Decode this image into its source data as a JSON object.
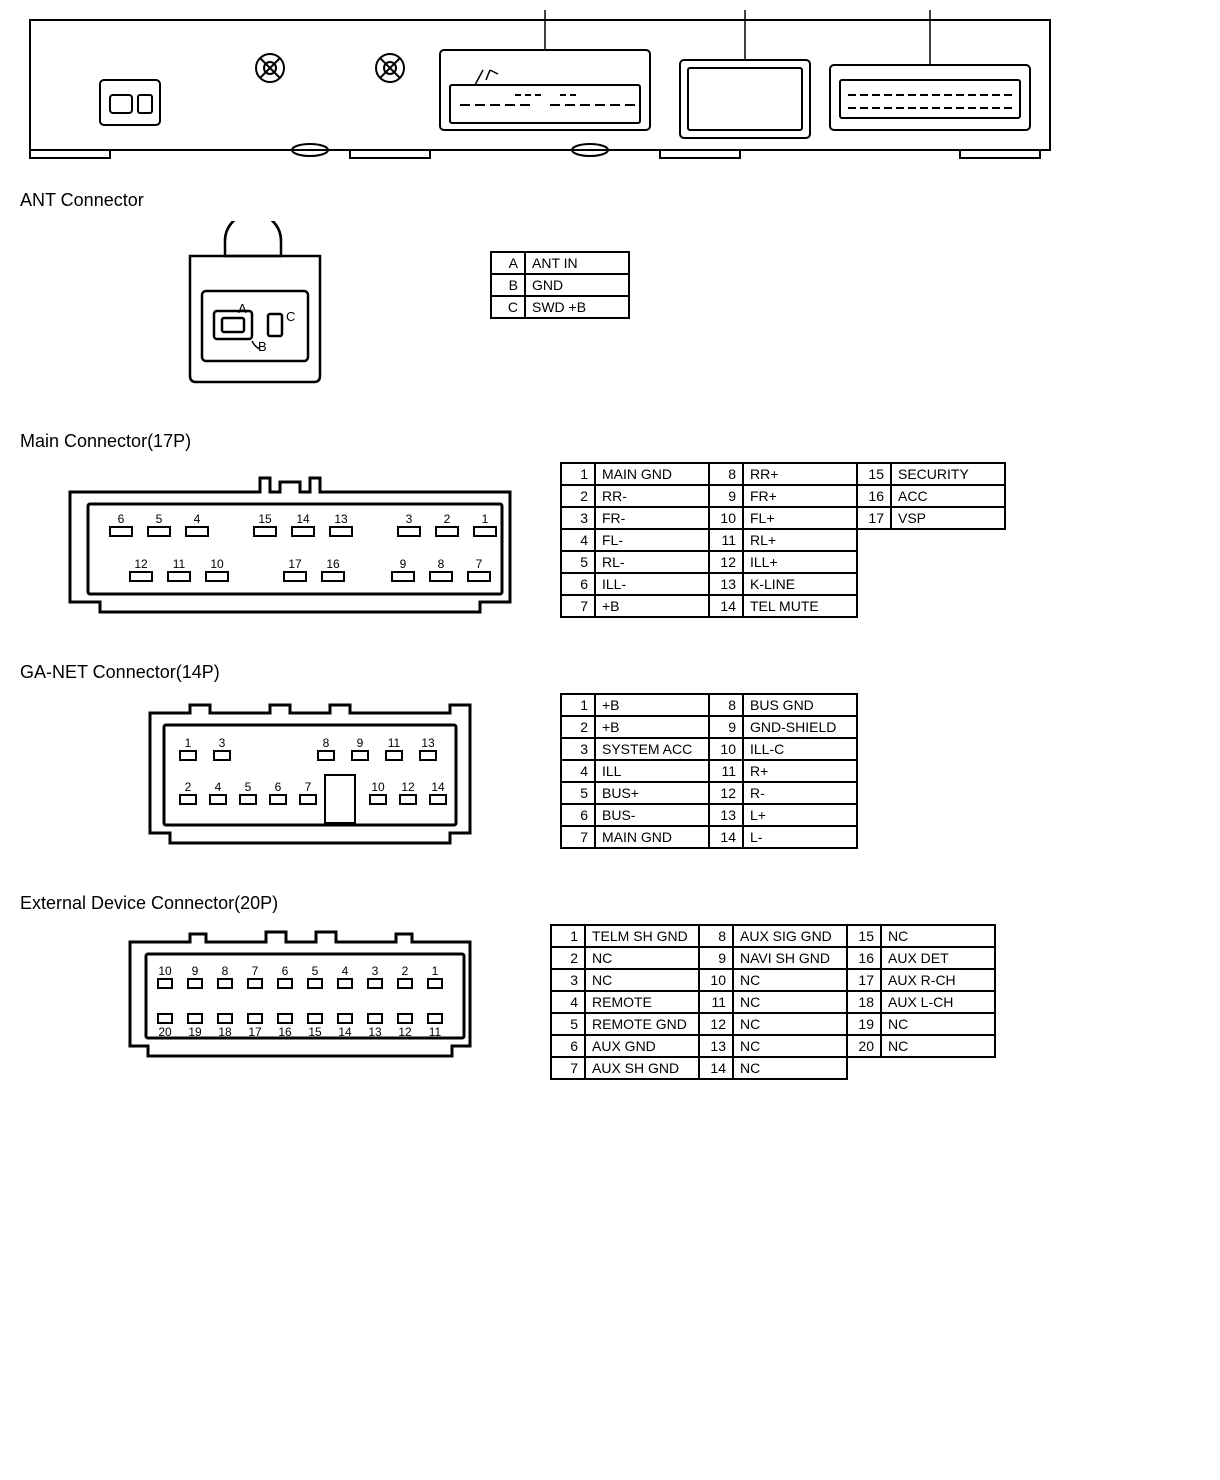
{
  "colors": {
    "stroke": "#000000",
    "background": "#ffffff",
    "font_family": "Arial, Helvetica, sans-serif"
  },
  "sections": {
    "ant": {
      "title": "ANT Connector",
      "pins": [
        {
          "n": "A",
          "name": "ANT IN"
        },
        {
          "n": "B",
          "name": "GND"
        },
        {
          "n": "C",
          "name": "SWD +B"
        }
      ]
    },
    "main": {
      "title": "Main Connector(17P)",
      "cols": 3,
      "pins": [
        {
          "n": "1",
          "name": "MAIN GND"
        },
        {
          "n": "2",
          "name": "RR-"
        },
        {
          "n": "3",
          "name": "FR-"
        },
        {
          "n": "4",
          "name": "FL-"
        },
        {
          "n": "5",
          "name": "RL-"
        },
        {
          "n": "6",
          "name": "ILL-"
        },
        {
          "n": "7",
          "name": "+B"
        },
        {
          "n": "8",
          "name": "RR+"
        },
        {
          "n": "9",
          "name": "FR+"
        },
        {
          "n": "10",
          "name": "FL+"
        },
        {
          "n": "11",
          "name": "RL+"
        },
        {
          "n": "12",
          "name": "ILL+"
        },
        {
          "n": "13",
          "name": "K-LINE"
        },
        {
          "n": "14",
          "name": "TEL MUTE"
        },
        {
          "n": "15",
          "name": "SECURITY"
        },
        {
          "n": "16",
          "name": "ACC"
        },
        {
          "n": "17",
          "name": "VSP"
        }
      ]
    },
    "ganet": {
      "title": "GA-NET Connector(14P)",
      "cols": 2,
      "pins": [
        {
          "n": "1",
          "name": "+B"
        },
        {
          "n": "2",
          "name": "+B"
        },
        {
          "n": "3",
          "name": "SYSTEM ACC"
        },
        {
          "n": "4",
          "name": "ILL"
        },
        {
          "n": "5",
          "name": "BUS+"
        },
        {
          "n": "6",
          "name": "BUS-"
        },
        {
          "n": "7",
          "name": "MAIN GND"
        },
        {
          "n": "8",
          "name": "BUS GND"
        },
        {
          "n": "9",
          "name": "GND-SHIELD"
        },
        {
          "n": "10",
          "name": "ILL-C"
        },
        {
          "n": "11",
          "name": "R+"
        },
        {
          "n": "12",
          "name": "R-"
        },
        {
          "n": "13",
          "name": "L+"
        },
        {
          "n": "14",
          "name": "L-"
        }
      ]
    },
    "ext": {
      "title": "External Device Connector(20P)",
      "cols": 3,
      "pins": [
        {
          "n": "1",
          "name": "TELM SH GND"
        },
        {
          "n": "2",
          "name": "NC"
        },
        {
          "n": "3",
          "name": "NC"
        },
        {
          "n": "4",
          "name": "REMOTE"
        },
        {
          "n": "5",
          "name": "REMOTE GND"
        },
        {
          "n": "6",
          "name": "AUX GND"
        },
        {
          "n": "7",
          "name": "AUX SH GND"
        },
        {
          "n": "8",
          "name": "AUX SIG GND"
        },
        {
          "n": "9",
          "name": "NAVI SH GND"
        },
        {
          "n": "10",
          "name": "NC"
        },
        {
          "n": "11",
          "name": "NC"
        },
        {
          "n": "12",
          "name": "NC"
        },
        {
          "n": "13",
          "name": "NC"
        },
        {
          "n": "14",
          "name": "NC"
        },
        {
          "n": "15",
          "name": "NC"
        },
        {
          "n": "16",
          "name": "AUX DET"
        },
        {
          "n": "17",
          "name": "AUX R-CH"
        },
        {
          "n": "18",
          "name": "AUX L-CH"
        },
        {
          "n": "19",
          "name": "NC"
        },
        {
          "n": "20",
          "name": "NC"
        }
      ]
    }
  },
  "connector_drawings": {
    "main_top_row_labels": [
      "6",
      "5",
      "4",
      "15",
      "14",
      "13",
      "3",
      "2",
      "1"
    ],
    "main_bottom_row_labels": [
      "12",
      "11",
      "10",
      "17",
      "16",
      "9",
      "8",
      "7"
    ],
    "ganet_top_row_labels": [
      "1",
      "3",
      "8",
      "9",
      "11",
      "13"
    ],
    "ganet_bottom_row_labels": [
      "2",
      "4",
      "5",
      "6",
      "7",
      "10",
      "12",
      "14"
    ],
    "ext_top_row_labels": [
      "10",
      "9",
      "8",
      "7",
      "6",
      "5",
      "4",
      "3",
      "2",
      "1"
    ],
    "ext_bottom_row_labels": [
      "20",
      "19",
      "18",
      "17",
      "16",
      "15",
      "14",
      "13",
      "12",
      "11"
    ],
    "ant_labels": [
      "A",
      "B",
      "C"
    ]
  }
}
